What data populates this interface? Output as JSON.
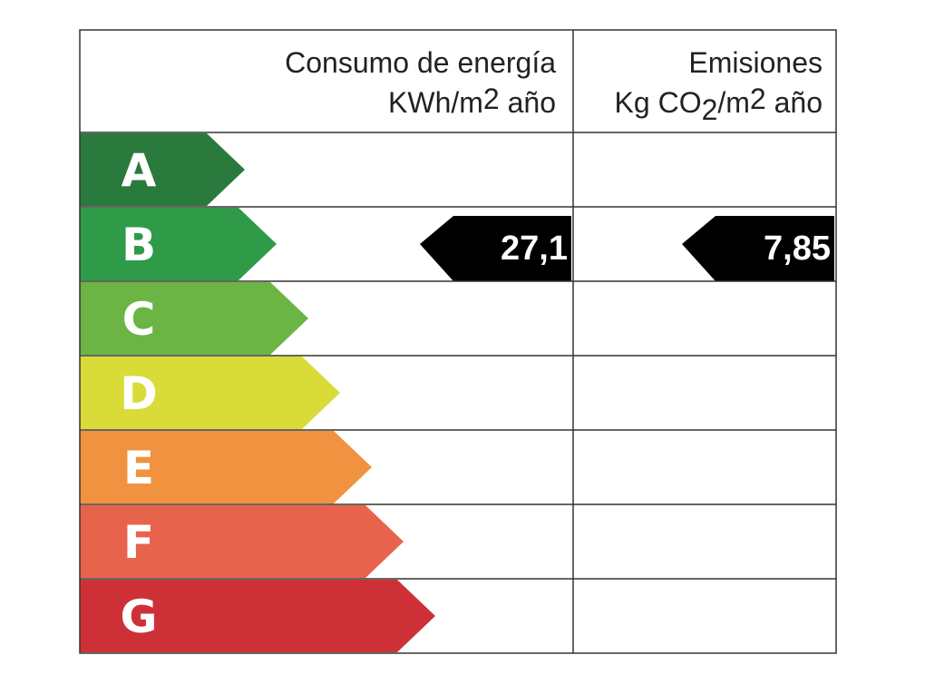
{
  "header": {
    "energy": {
      "title": "Consumo de energía",
      "unit_before": "KWh/m",
      "unit_sup": "2",
      "unit_after": " año"
    },
    "emissions": {
      "title": "Emisiones",
      "unit_before": "Kg CO",
      "unit_sub": "2",
      "unit_mid": "/m",
      "unit_sup": "2",
      "unit_after": " año"
    }
  },
  "rows": [
    {
      "letter": "A",
      "color": "#2a7a3e"
    },
    {
      "letter": "B",
      "color": "#2f9a48",
      "energy": "27,1",
      "emissions": "7,85"
    },
    {
      "letter": "C",
      "color": "#6cb443"
    },
    {
      "letter": "D",
      "color": "#d9dc38"
    },
    {
      "letter": "E",
      "color": "#f0923f"
    },
    {
      "letter": "F",
      "color": "#e8634b"
    },
    {
      "letter": "G",
      "color": "#cd3137"
    }
  ]
}
